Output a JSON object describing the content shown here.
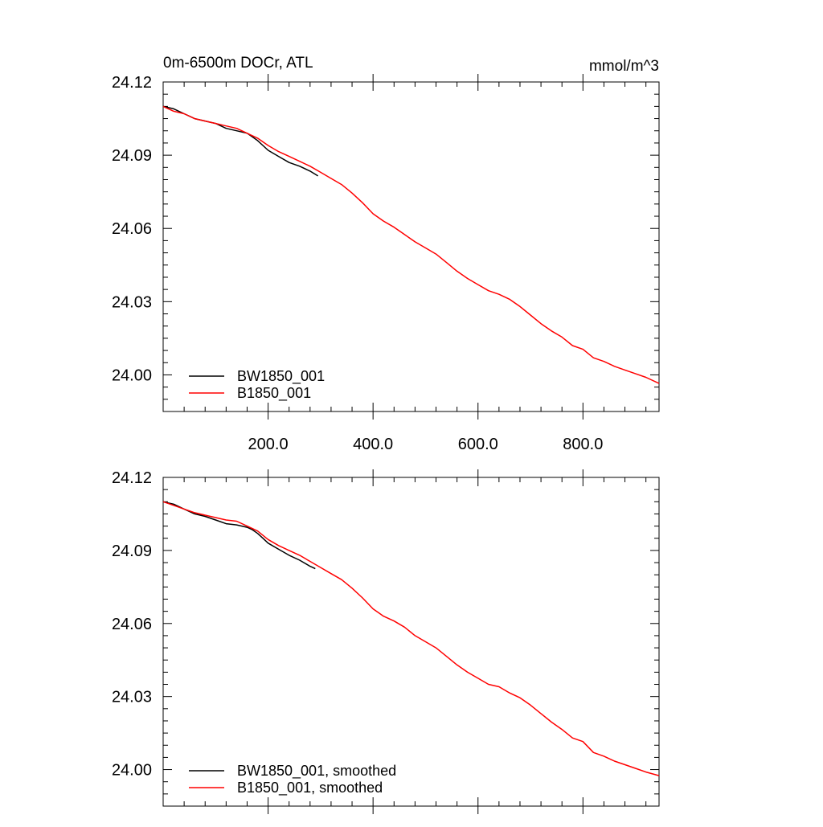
{
  "chart_data": [
    {
      "type": "line",
      "title": "0m-6500m DOCr, ATL",
      "units": "mmol/m^3",
      "xlabel": "",
      "ylabel": "",
      "xlim": [
        0,
        945
      ],
      "ylim": [
        23.985,
        24.12
      ],
      "x_ticks": [
        "200.0",
        "400.0",
        "600.0",
        "800.0"
      ],
      "y_ticks": [
        "24.12",
        "24.09",
        "24.06",
        "24.03",
        "24.00"
      ],
      "x_tick_labels_visible": true,
      "grid": false,
      "legend_position": "bottom-left",
      "series": [
        {
          "name": "BW1850_001",
          "color": "#000000",
          "x": [
            0,
            20,
            40,
            60,
            80,
            100,
            120,
            140,
            160,
            170,
            180,
            190,
            200,
            220,
            240,
            260,
            280,
            295
          ],
          "y": [
            24.11,
            24.109,
            24.107,
            24.105,
            24.104,
            24.103,
            24.101,
            24.1,
            24.099,
            24.0975,
            24.096,
            24.094,
            24.092,
            24.0895,
            24.087,
            24.0855,
            24.0835,
            24.0815
          ]
        },
        {
          "name": "B1850_001",
          "color": "#ff0000",
          "x": [
            0,
            20,
            40,
            60,
            80,
            100,
            120,
            140,
            160,
            180,
            200,
            220,
            240,
            260,
            280,
            300,
            320,
            340,
            360,
            380,
            400,
            420,
            440,
            460,
            480,
            500,
            520,
            540,
            560,
            580,
            600,
            620,
            640,
            660,
            680,
            700,
            720,
            740,
            760,
            780,
            800,
            820,
            840,
            860,
            880,
            900,
            920,
            945
          ],
          "y": [
            24.11,
            24.108,
            24.107,
            24.105,
            24.104,
            24.103,
            24.102,
            24.101,
            24.099,
            24.097,
            24.094,
            24.0915,
            24.0895,
            24.0875,
            24.0855,
            24.083,
            24.0805,
            24.078,
            24.0745,
            24.0705,
            24.066,
            24.063,
            24.0605,
            24.0575,
            24.0545,
            24.052,
            24.0495,
            24.046,
            24.0425,
            24.0395,
            24.037,
            24.0345,
            24.033,
            24.031,
            24.028,
            24.0245,
            24.021,
            24.018,
            24.0155,
            24.012,
            24.0105,
            24.007,
            24.0055,
            24.0035,
            24.002,
            24.0005,
            23.999,
            23.9965
          ]
        }
      ]
    },
    {
      "type": "line",
      "title": "",
      "units": "",
      "xlabel": "",
      "ylabel": "",
      "xlim": [
        0,
        945
      ],
      "ylim": [
        23.985,
        24.12
      ],
      "x_ticks": [],
      "y_ticks": [
        "24.12",
        "24.09",
        "24.06",
        "24.03",
        "24.00"
      ],
      "x_tick_labels_visible": false,
      "grid": false,
      "legend_position": "bottom-left",
      "series": [
        {
          "name": "BW1850_001, smoothed",
          "color": "#000000",
          "x": [
            0,
            20,
            40,
            60,
            80,
            100,
            120,
            140,
            160,
            170,
            180,
            190,
            200,
            220,
            240,
            260,
            280,
            290
          ],
          "y": [
            24.11,
            24.109,
            24.107,
            24.105,
            24.104,
            24.1025,
            24.101,
            24.1005,
            24.0995,
            24.0985,
            24.097,
            24.095,
            24.093,
            24.0905,
            24.088,
            24.086,
            24.0835,
            24.0825
          ]
        },
        {
          "name": "B1850_001, smoothed",
          "color": "#ff0000",
          "x": [
            0,
            20,
            40,
            60,
            80,
            100,
            120,
            140,
            160,
            180,
            200,
            220,
            240,
            260,
            280,
            300,
            320,
            340,
            360,
            380,
            400,
            420,
            440,
            460,
            480,
            500,
            520,
            540,
            560,
            580,
            600,
            620,
            640,
            660,
            680,
            700,
            720,
            740,
            760,
            780,
            800,
            820,
            840,
            860,
            880,
            900,
            920,
            945
          ],
          "y": [
            24.11,
            24.1085,
            24.107,
            24.1055,
            24.1045,
            24.1035,
            24.1025,
            24.102,
            24.1,
            24.098,
            24.0945,
            24.092,
            24.09,
            24.088,
            24.0855,
            24.083,
            24.0805,
            24.078,
            24.0745,
            24.0705,
            24.066,
            24.063,
            24.061,
            24.0585,
            24.055,
            24.0525,
            24.05,
            24.0465,
            24.043,
            24.04,
            24.0375,
            24.035,
            24.034,
            24.0315,
            24.0295,
            24.0265,
            24.023,
            24.0195,
            24.0165,
            24.013,
            24.0115,
            24.007,
            24.0055,
            24.0035,
            24.002,
            24.0005,
            23.999,
            23.9975
          ]
        }
      ]
    }
  ]
}
